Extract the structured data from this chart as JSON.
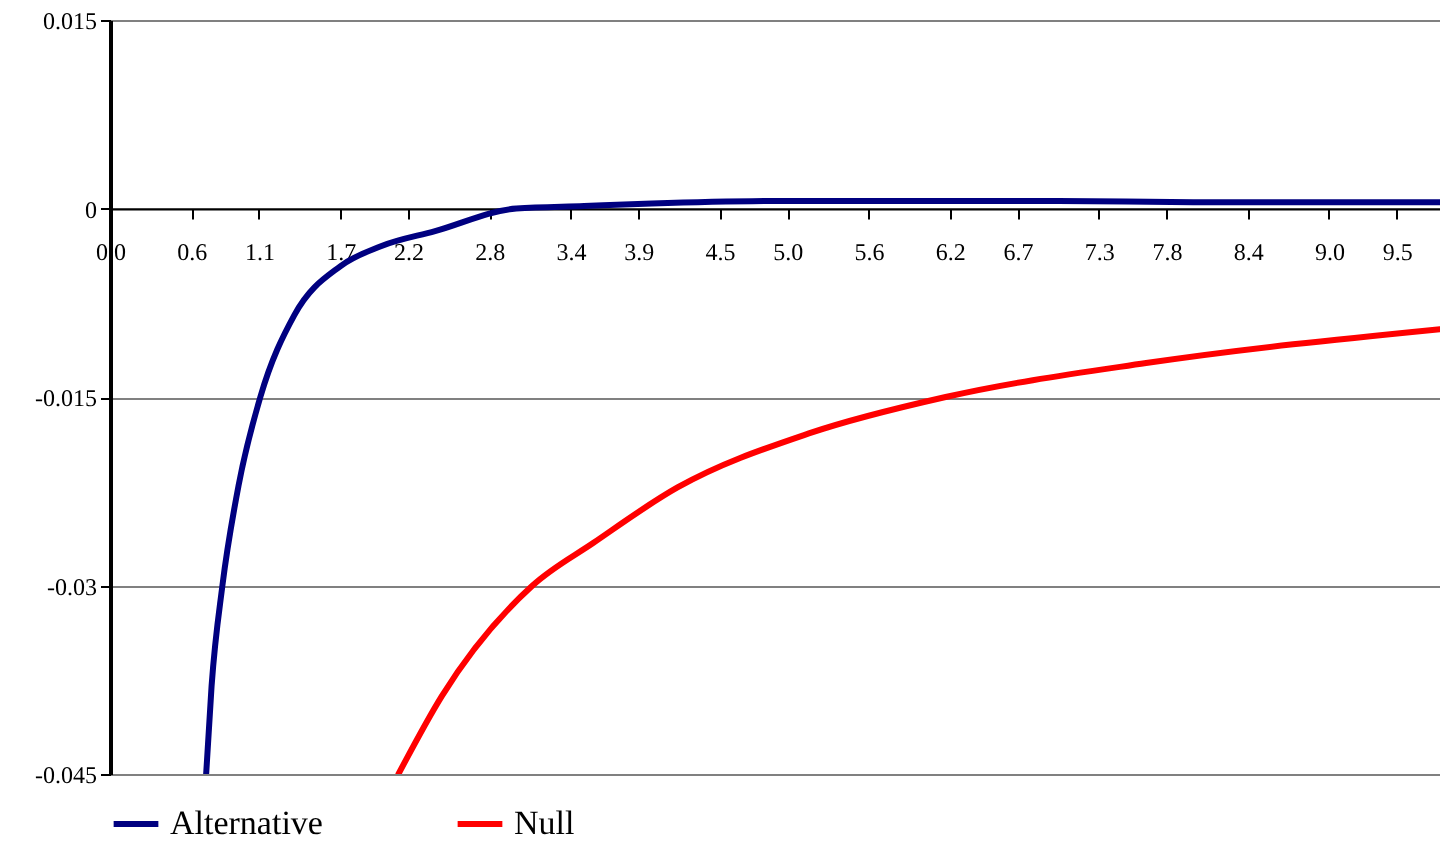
{
  "chart_data": {
    "type": "line",
    "xlim": [
      0,
      9.82
    ],
    "xticks": [
      {
        "value": 0,
        "label": "0.0"
      },
      0.6,
      1.1,
      1.7,
      2.2,
      2.8,
      3.4,
      3.9,
      4.5,
      {
        "value": 5,
        "label": "5.0"
      },
      5.6,
      6.2,
      6.7,
      7.3,
      7.8,
      8.4,
      {
        "value": 9,
        "label": "9.0"
      },
      9.5
    ],
    "ylim": [
      -0.045,
      0.015
    ],
    "yticks": [
      0.015,
      0,
      -0.015,
      -0.03,
      -0.045
    ],
    "grid": "y",
    "legend": "bottom",
    "marker": "none",
    "line_style": "solid",
    "series": [
      {
        "name": "Alternative",
        "color": "#000080",
        "x": [
          0.71,
          0.75,
          0.83,
          0.95,
          1.11,
          1.36,
          1.7,
          2.0,
          2.4,
          3.0,
          3.5,
          4.0,
          5.0,
          6.0,
          7.0,
          8.0,
          9.82
        ],
        "values": [
          -0.045,
          -0.038,
          -0.03,
          -0.022,
          -0.015,
          -0.0085,
          -0.0046,
          -0.003,
          -0.0018,
          0,
          0.0002,
          0.0004,
          0.0006,
          0.0006,
          0.0006,
          0.0005,
          0.0005
        ]
      },
      {
        "name": "Null",
        "color": "#ff0000",
        "x": [
          2.13,
          2.45,
          3.12,
          3.57,
          4.19,
          5.16,
          6.17,
          7.65,
          9.82
        ],
        "values": [
          -0.045,
          -0.0388,
          -0.03,
          -0.0266,
          -0.0222,
          -0.0179,
          -0.015,
          -0.0123,
          -0.0096
        ]
      }
    ]
  }
}
